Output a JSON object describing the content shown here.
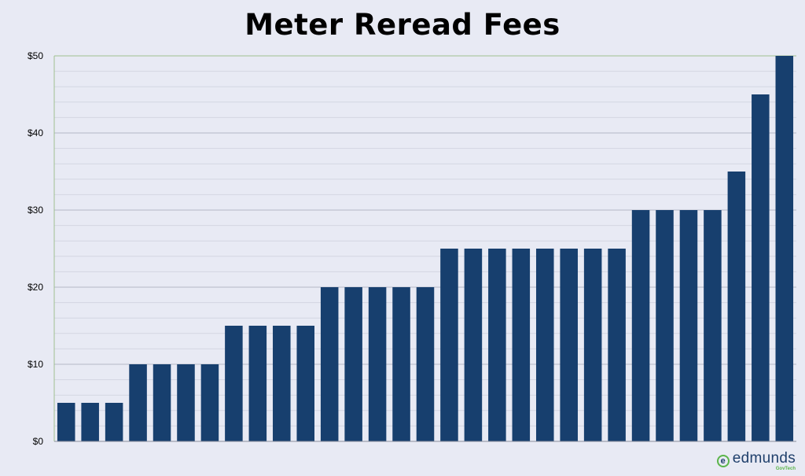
{
  "chart_data": {
    "type": "bar",
    "title": "Meter Reread Fees",
    "xlabel": "",
    "ylabel": "",
    "ylim": [
      0,
      50
    ],
    "yticks": [
      0,
      10,
      20,
      30,
      40,
      50
    ],
    "ytick_labels": [
      "$0",
      "$10",
      "$20",
      "$30",
      "$40",
      "$50"
    ],
    "grid": true,
    "legend": "none",
    "bar_color": "#173f6e",
    "values": [
      5,
      5,
      5,
      10,
      10,
      10,
      10,
      15,
      15,
      15,
      15,
      20,
      20,
      20,
      20,
      20,
      25,
      25,
      25,
      25,
      25,
      25,
      25,
      25,
      30,
      30,
      30,
      30,
      35,
      45,
      50
    ]
  },
  "logo": {
    "mark": "e",
    "name": "edmunds",
    "sub": "GovTech"
  }
}
